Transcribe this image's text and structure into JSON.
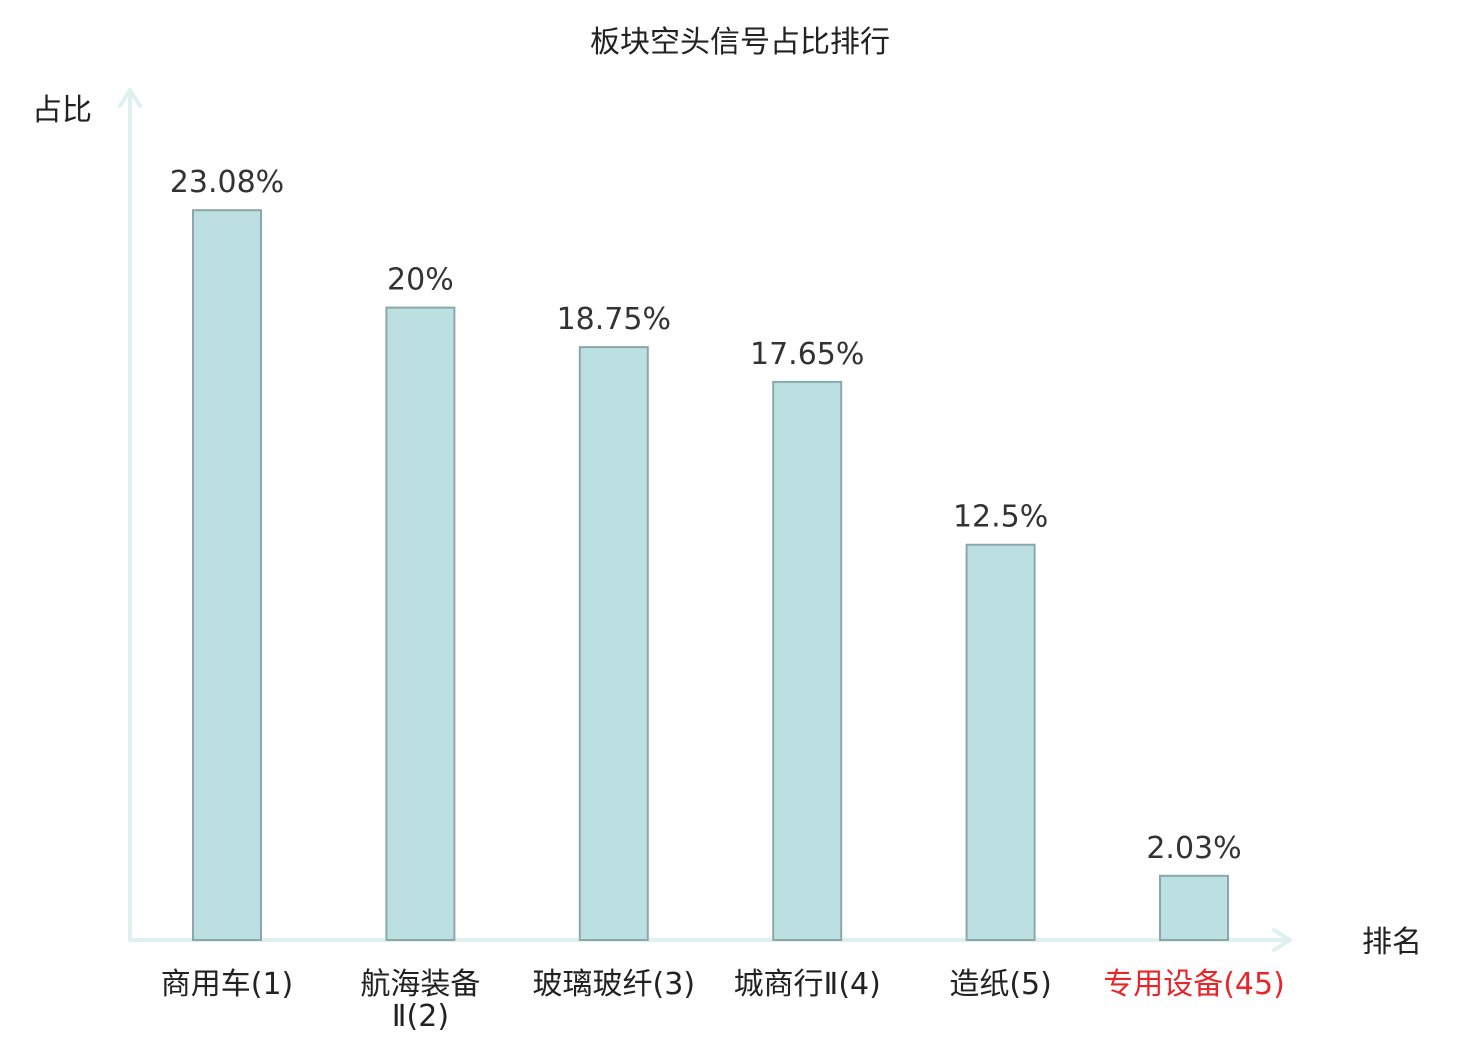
{
  "chart_data": {
    "type": "bar",
    "title": "板块空头信号占比排行",
    "ylabel": "占比",
    "xlabel": "排名",
    "ylim": [
      0,
      25.3
    ],
    "grid": false,
    "categories": [
      {
        "name": "商用车",
        "rank": "(1)"
      },
      {
        "name": "航海装备",
        "name_line2": "Ⅱ",
        "rank": "(2)"
      },
      {
        "name": "玻璃玻纤",
        "rank": "(3)"
      },
      {
        "name": "城商行Ⅱ",
        "rank": "(4)"
      },
      {
        "name": "造纸",
        "rank": "(5)"
      },
      {
        "name": "专用设备",
        "rank": "(45)",
        "highlight": true
      }
    ],
    "values": [
      23.08,
      20,
      18.75,
      17.65,
      12.5,
      2.03
    ],
    "value_labels": [
      "23.08%",
      "20%",
      "18.75%",
      "17.65%",
      "12.5%",
      "2.03%"
    ]
  },
  "colors": {
    "bar_fill": "#bce0e2",
    "bar_stroke": "#8aa8aa",
    "axis": "#dff1ef",
    "text": "#222222",
    "value_text": "#333333",
    "highlight": "#e8262a"
  }
}
